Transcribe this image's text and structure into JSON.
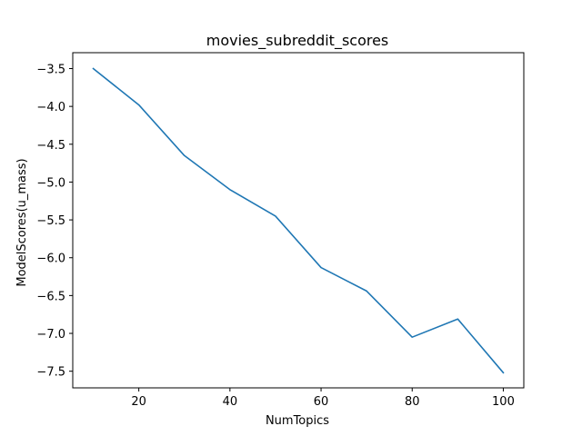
{
  "chart_data": {
    "type": "line",
    "title": "movies_subreddit_scores",
    "xlabel": "NumTopics",
    "ylabel": "ModelScores(u_mass)",
    "xlim": [
      5.5,
      104.5
    ],
    "ylim": [
      -7.72,
      -3.29
    ],
    "grid": false,
    "x_ticks": [
      20,
      40,
      60,
      80,
      100
    ],
    "x_tick_labels": [
      "20",
      "40",
      "60",
      "80",
      "100"
    ],
    "y_ticks": [
      -3.5,
      -4.0,
      -4.5,
      -5.0,
      -5.5,
      -6.0,
      -6.5,
      -7.0,
      -7.5
    ],
    "y_tick_labels": [
      "−3.5",
      "−4.0",
      "−4.5",
      "−5.0",
      "−5.5",
      "−6.0",
      "−6.5",
      "−7.0",
      "−7.5"
    ],
    "series": [
      {
        "name": "u_mass",
        "color": "#1f77b4",
        "x": [
          10,
          20,
          30,
          40,
          50,
          60,
          70,
          80,
          90,
          100
        ],
        "values": [
          -3.5,
          -3.98,
          -4.65,
          -5.1,
          -5.45,
          -6.13,
          -6.44,
          -7.05,
          -6.81,
          -7.52
        ]
      }
    ]
  }
}
